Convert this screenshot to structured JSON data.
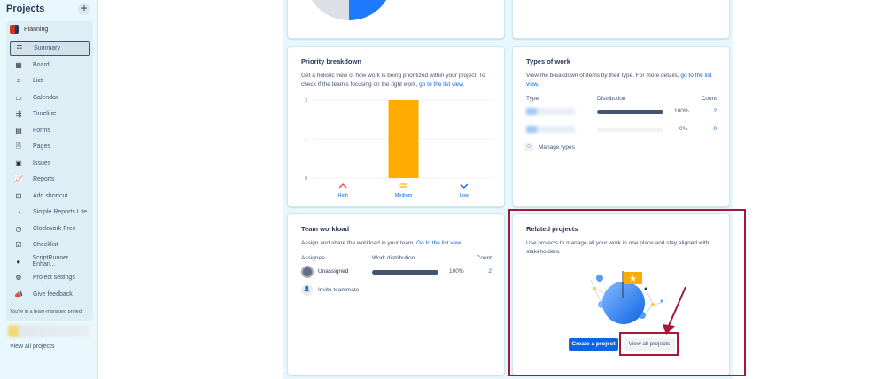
{
  "sidebar": {
    "title": "Projects",
    "project": "Planning",
    "items": [
      {
        "label": "Summary",
        "icon": "summary-icon",
        "glyph": "☰",
        "active": true
      },
      {
        "label": "Board",
        "icon": "board-icon",
        "glyph": "▦"
      },
      {
        "label": "List",
        "icon": "list-icon",
        "glyph": "≡"
      },
      {
        "label": "Calendar",
        "icon": "calendar-icon",
        "glyph": "▭"
      },
      {
        "label": "Timeline",
        "icon": "timeline-icon",
        "glyph": "⇶"
      },
      {
        "label": "Forms",
        "icon": "forms-icon",
        "glyph": "▤"
      },
      {
        "label": "Pages",
        "icon": "pages-icon",
        "glyph": "🗎"
      },
      {
        "label": "Issues",
        "icon": "issues-icon",
        "glyph": "▣"
      },
      {
        "label": "Reports",
        "icon": "reports-icon",
        "glyph": "📈"
      },
      {
        "label": "Add shortcut",
        "icon": "add-shortcut-icon",
        "glyph": "⊡"
      },
      {
        "label": "Simple Reports Lite",
        "icon": "pie-icon",
        "glyph": "◔"
      },
      {
        "label": "Clockwork Free",
        "icon": "clock-icon",
        "glyph": "◷"
      },
      {
        "label": "Checklist",
        "icon": "checklist-icon",
        "glyph": "☑"
      },
      {
        "label": "ScriptRunner Enhan...",
        "icon": "scriptrunner-icon",
        "glyph": "●"
      },
      {
        "label": "Project settings",
        "icon": "gear-icon",
        "glyph": "⚙"
      },
      {
        "label": "Give feedback",
        "icon": "megaphone-icon",
        "glyph": "📣"
      }
    ],
    "note": "You're in a team-managed project",
    "view_all": "View all projects"
  },
  "priority": {
    "title": "Priority breakdown",
    "desc": "Get a holistic view of how work is being prioritized within your project. To check if the team's focusing on the right work, ",
    "link": "go to the list view.",
    "chart_data": {
      "type": "bar",
      "categories": [
        "High",
        "Medium",
        "Low"
      ],
      "values": [
        0,
        2,
        0
      ],
      "ylim": [
        0,
        2
      ],
      "yticks": [
        0,
        1,
        2
      ],
      "bar_color": "#ffab00",
      "icon_colors": [
        "#e2483d",
        "#ffab00",
        "#0c66e4"
      ]
    }
  },
  "types": {
    "title": "Types of work",
    "desc": "View the breakdown of items by their type. For more details, ",
    "link": "go to the list view.",
    "headers": [
      "Type",
      "Distribution",
      "Count"
    ],
    "rows": [
      {
        "pct": "100%",
        "value": 100,
        "count": "2"
      },
      {
        "pct": "0%",
        "value": 0,
        "count": "0"
      }
    ],
    "manage": "Manage types"
  },
  "workload": {
    "title": "Team workload",
    "desc": "Assign and share the workload in your team. ",
    "link": "Go to the list view.",
    "headers": [
      "Assignee",
      "Work distribution",
      "Count"
    ],
    "rows": [
      {
        "name": "Unassigned",
        "pct": "100%",
        "value": 100,
        "count": "2"
      }
    ],
    "invite": "Invite teammate"
  },
  "related": {
    "title": "Related projects",
    "desc": "Use projects to manage all your work in one place and stay aligned with stakeholders.",
    "create": "Create a project",
    "view_all": "View all projects"
  }
}
